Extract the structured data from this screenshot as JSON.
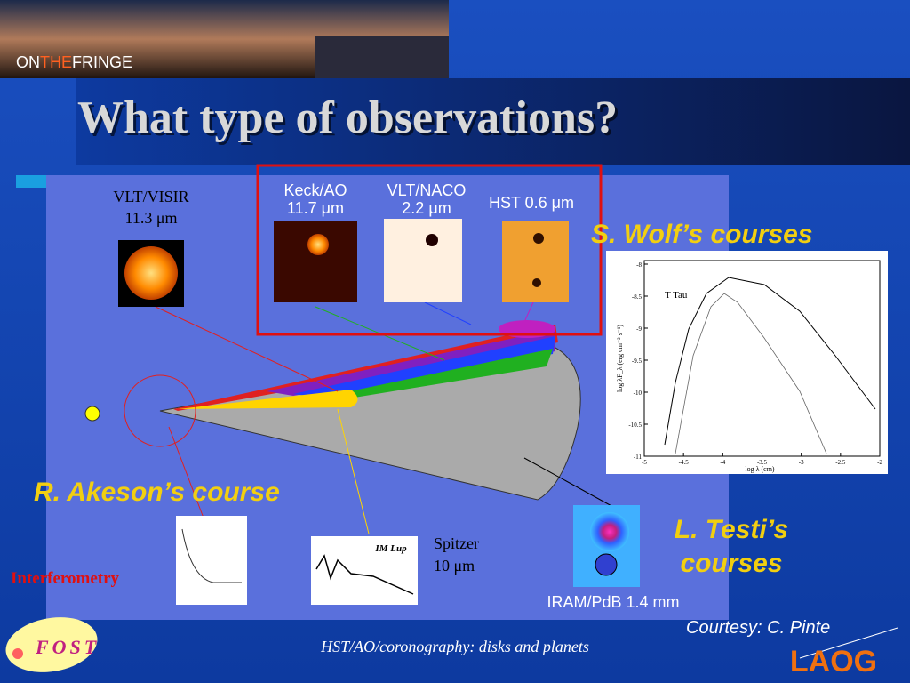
{
  "header": {
    "banner": [
      "ON",
      "THE",
      "FRINGE"
    ],
    "title": "What type of observations?"
  },
  "figure": {
    "instruments": [
      {
        "name": "VLT/VISIR",
        "band": "11.3 μm"
      },
      {
        "name": "Keck/AO",
        "band": "11.7 μm"
      },
      {
        "name": "VLT/NACO",
        "band": "2.2 μm"
      },
      {
        "name": "HST 0.6 μm"
      },
      {
        "name": "Spitzer",
        "band": "10 μm"
      },
      {
        "name": "IRAM/PdB 1.4 mm"
      }
    ],
    "spectrum_label": "IM Lup",
    "interferometry": "Interferometry"
  },
  "courses": {
    "wolf": "S. Wolf’s courses",
    "akeson": "R. Akeson’s course",
    "testi": [
      "L. Testi’s",
      "courses"
    ]
  },
  "sed_plot": {
    "object": "T Tau",
    "x_label": "log λ (cm)",
    "y_label": "log λF_λ (erg cm⁻² s⁻¹)",
    "x_ticks": [
      -5,
      -4.5,
      -4,
      -3.5,
      -3,
      -2.5,
      -2
    ],
    "y_ticks": [
      -8,
      -8.5,
      -9,
      -9.5,
      -10,
      -10.5,
      -11
    ]
  },
  "footer": {
    "courtesy": "Courtesy: C. Pinte",
    "caption": "HST/AO/coronography: disks and planets",
    "logo_left": "FOST",
    "logo_right": "LAOG"
  }
}
